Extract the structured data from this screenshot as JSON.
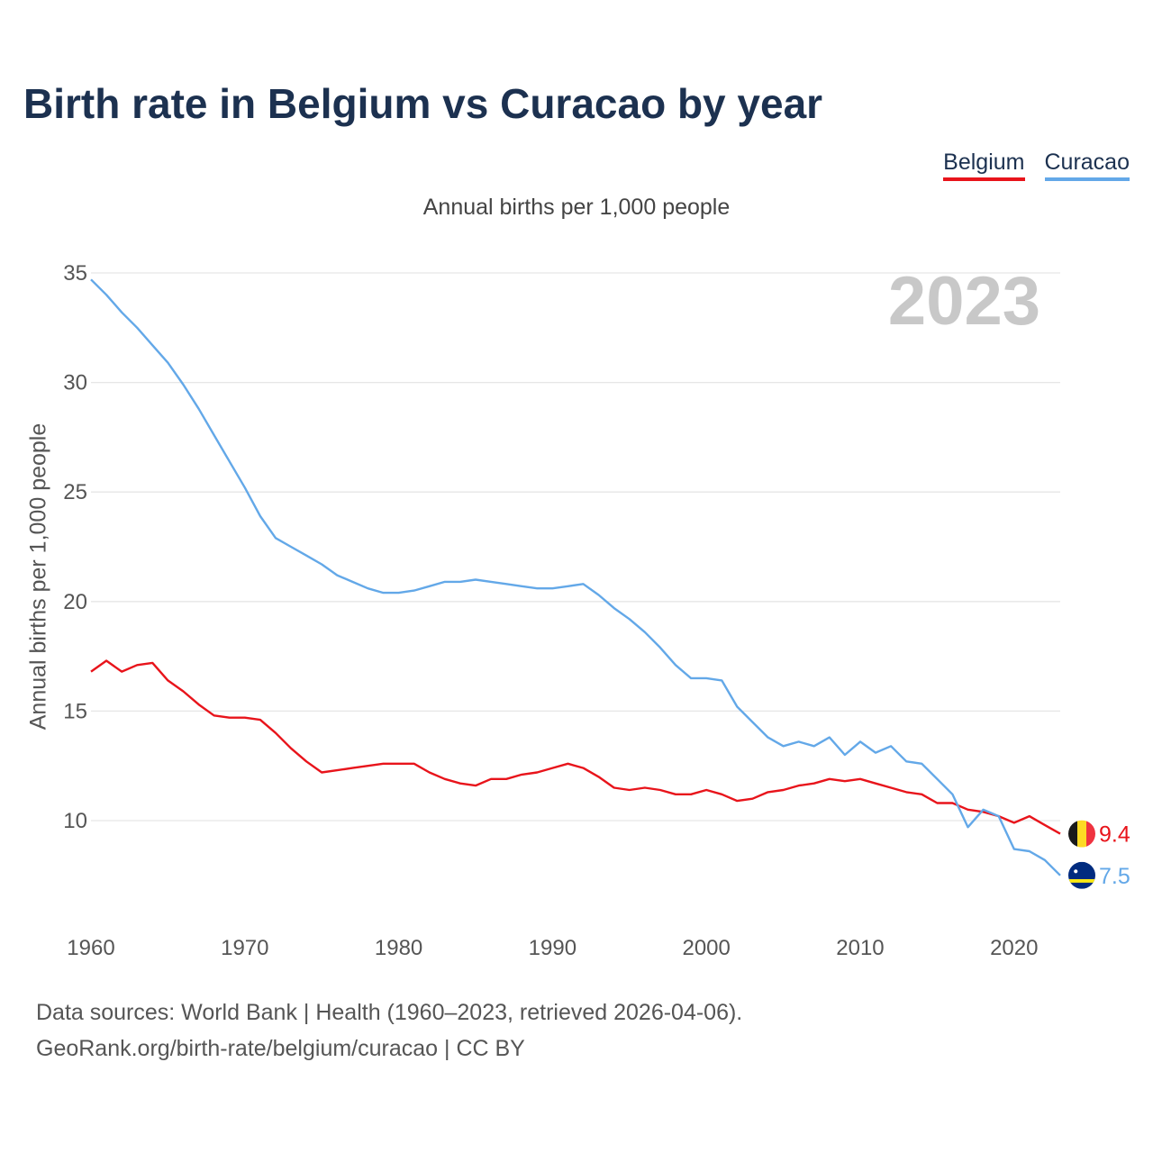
{
  "title": "Birth rate in Belgium vs Curacao by year",
  "subtitle": "Annual births per 1,000 people",
  "legend": [
    {
      "label": "Belgium",
      "color": "#e8141b"
    },
    {
      "label": "Curacao",
      "color": "#63a8e8"
    }
  ],
  "year_watermark": "2023",
  "source": {
    "line1": "Data sources: World Bank | Health (1960–2023, retrieved 2026-04-06).",
    "line2": "GeoRank.org/birth-rate/belgium/curacao | CC BY"
  },
  "chart_data": {
    "type": "line",
    "title": "Birth rate in Belgium vs Curacao by year",
    "xlabel": "",
    "ylabel": "Annual births per 1,000 people",
    "xlim": [
      1960,
      2023
    ],
    "ylim": [
      6,
      35
    ],
    "yticks": [
      10,
      15,
      20,
      25,
      30,
      35
    ],
    "xticks": [
      1960,
      1970,
      1980,
      1990,
      2000,
      2010,
      2020
    ],
    "grid": true,
    "legend": "top-right",
    "x": [
      1960,
      1961,
      1962,
      1963,
      1964,
      1965,
      1966,
      1967,
      1968,
      1969,
      1970,
      1971,
      1972,
      1973,
      1974,
      1975,
      1976,
      1977,
      1978,
      1979,
      1980,
      1981,
      1982,
      1983,
      1984,
      1985,
      1986,
      1987,
      1988,
      1989,
      1990,
      1991,
      1992,
      1993,
      1994,
      1995,
      1996,
      1997,
      1998,
      1999,
      2000,
      2001,
      2002,
      2003,
      2004,
      2005,
      2006,
      2007,
      2008,
      2009,
      2010,
      2011,
      2012,
      2013,
      2014,
      2015,
      2016,
      2017,
      2018,
      2019,
      2020,
      2021,
      2022,
      2023
    ],
    "series": [
      {
        "name": "Belgium",
        "color": "#e8141b",
        "end_label": "9.4",
        "values": [
          16.8,
          17.3,
          16.8,
          17.1,
          17.2,
          16.4,
          15.9,
          15.3,
          14.8,
          14.7,
          14.7,
          14.6,
          14.0,
          13.3,
          12.7,
          12.2,
          12.3,
          12.4,
          12.5,
          12.6,
          12.6,
          12.6,
          12.2,
          11.9,
          11.7,
          11.6,
          11.9,
          11.9,
          12.1,
          12.2,
          12.4,
          12.6,
          12.4,
          12.0,
          11.5,
          11.4,
          11.5,
          11.4,
          11.2,
          11.2,
          11.4,
          11.2,
          10.9,
          11.0,
          11.3,
          11.4,
          11.6,
          11.7,
          11.9,
          11.8,
          11.9,
          11.7,
          11.5,
          11.3,
          11.2,
          10.8,
          10.8,
          10.5,
          10.4,
          10.2,
          9.9,
          10.2,
          9.8,
          9.4
        ]
      },
      {
        "name": "Curacao",
        "color": "#63a8e8",
        "end_label": "7.5",
        "values": [
          34.7,
          34.0,
          33.2,
          32.5,
          31.7,
          30.9,
          29.9,
          28.8,
          27.6,
          26.4,
          25.2,
          23.9,
          22.9,
          22.5,
          22.1,
          21.7,
          21.2,
          20.9,
          20.6,
          20.4,
          20.4,
          20.5,
          20.7,
          20.9,
          20.9,
          21.0,
          20.9,
          20.8,
          20.7,
          20.6,
          20.6,
          20.7,
          20.8,
          20.3,
          19.7,
          19.2,
          18.6,
          17.9,
          17.1,
          16.5,
          16.5,
          16.4,
          15.2,
          14.5,
          13.8,
          13.4,
          13.6,
          13.4,
          13.8,
          13.0,
          13.6,
          13.1,
          13.4,
          12.7,
          12.6,
          11.9,
          11.2,
          9.7,
          10.5,
          10.2,
          8.7,
          8.6,
          8.2,
          7.5
        ]
      }
    ]
  }
}
